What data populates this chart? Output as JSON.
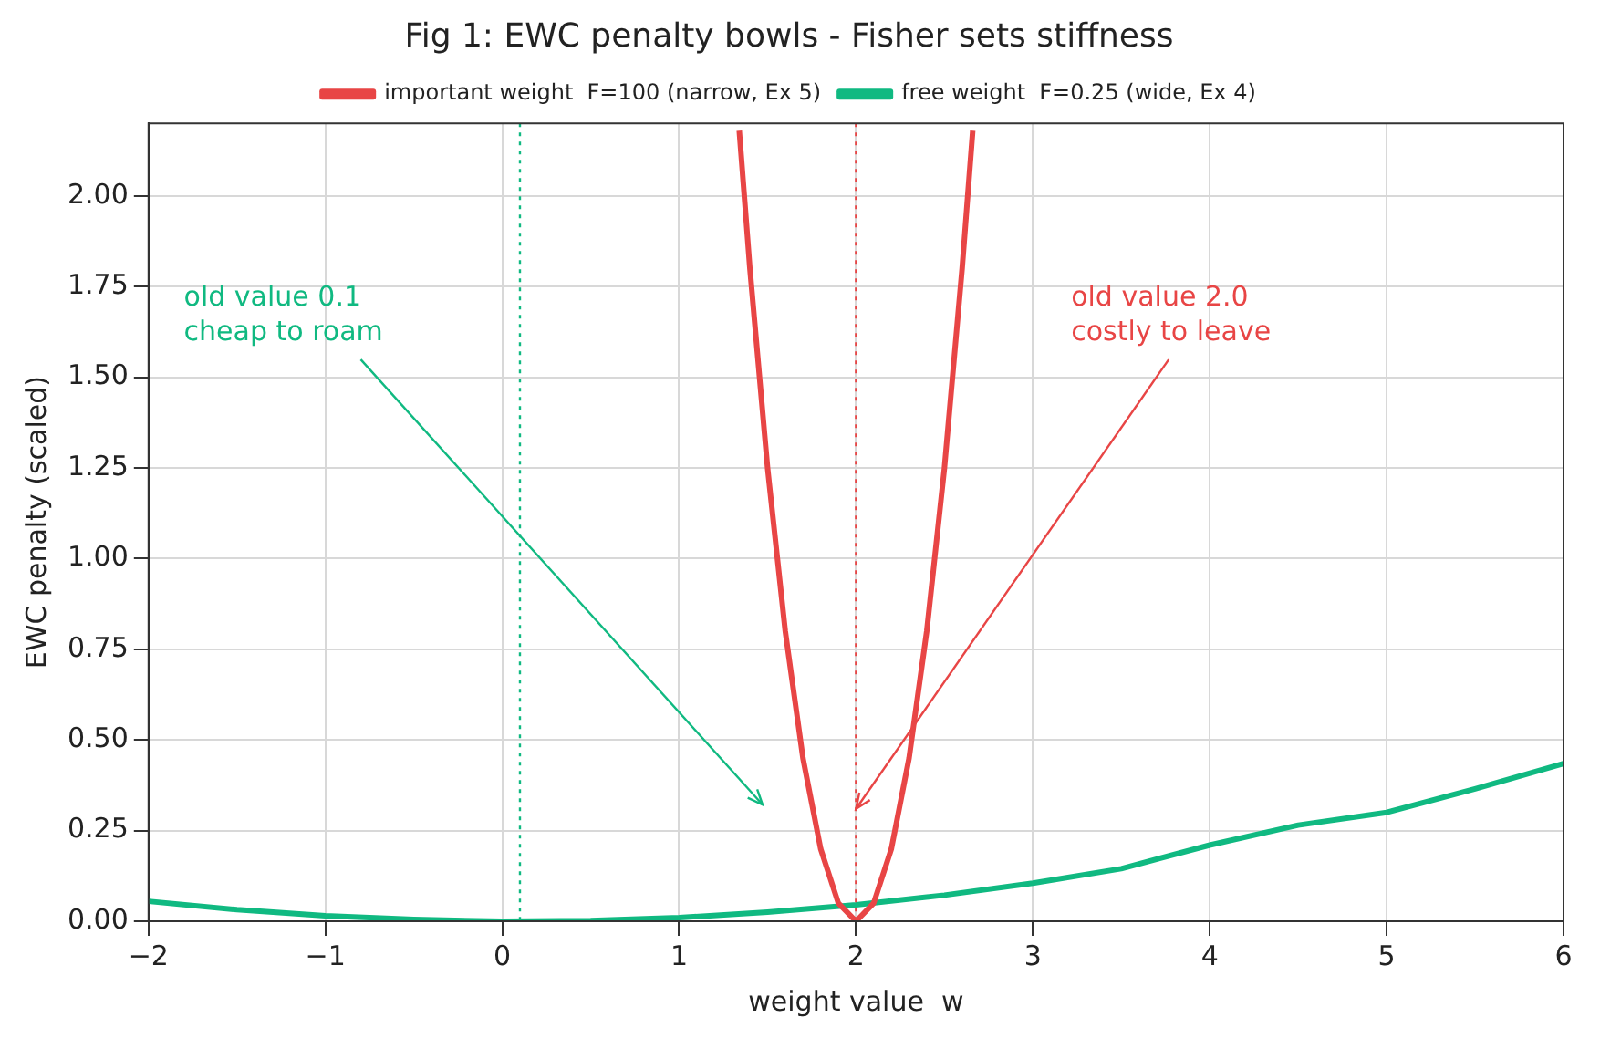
{
  "chart_data": {
    "type": "line",
    "title": "Fig 1: EWC penalty bowls - Fisher sets stiffness",
    "xlabel": "weight value  w",
    "ylabel": "EWC penalty (scaled)",
    "series": [
      {
        "name": "important weight  F=100 (narrow, Ex 5)",
        "color": "#e84545",
        "x": [
          1.34,
          1.4,
          1.5,
          1.6,
          1.7,
          1.8,
          1.9,
          2.0,
          2.1,
          2.2,
          2.3,
          2.4,
          2.5,
          2.6,
          2.66
        ],
        "values": [
          2.18,
          1.8,
          1.25,
          0.8,
          0.45,
          0.2,
          0.05,
          0,
          0.05,
          0.2,
          0.45,
          0.8,
          1.25,
          1.8,
          2.18
        ]
      },
      {
        "name": "free weight  F=0.25 (wide, Ex 4)",
        "color": "#10b981",
        "x": [
          -2,
          -1.5,
          -1,
          -0.5,
          0,
          0.5,
          1,
          1.5,
          2,
          2.5,
          3,
          3.5,
          4,
          4.5,
          5,
          5.5,
          6
        ],
        "values": [
          0.055,
          0.032,
          0.015,
          0.005,
          0,
          0.002,
          0.01,
          0.025,
          0.045,
          0.072,
          0.105,
          0.145,
          0.21,
          0.265,
          0.3,
          0.365,
          0.435
        ]
      }
    ],
    "xlim": [
      -2,
      6
    ],
    "xticks": [
      {
        "value": -2,
        "label": "−2"
      },
      {
        "value": -1,
        "label": "−1"
      },
      0,
      1,
      2,
      3,
      4,
      5,
      6
    ],
    "ylim": [
      0,
      2.2
    ],
    "yticks": [
      {
        "value": 0,
        "label": "0.00"
      },
      {
        "value": 0.25,
        "label": "0.25"
      },
      {
        "value": 0.5,
        "label": "0.50"
      },
      {
        "value": 0.75,
        "label": "0.75"
      },
      {
        "value": 1,
        "label": "1.00"
      },
      {
        "value": 1.25,
        "label": "1.25"
      },
      {
        "value": 1.5,
        "label": "1.50"
      },
      {
        "value": 1.75,
        "label": "1.75"
      },
      {
        "value": 2,
        "label": "2.00"
      }
    ],
    "ref_lines": [
      {
        "axis": "x",
        "value": 0.1,
        "color": "#10b981",
        "line_style": "dotted"
      },
      {
        "axis": "x",
        "value": 2,
        "color": "#e84545",
        "line_style": "dotted"
      }
    ],
    "annotations": [
      "old value 0.1\ncheap to roam",
      {
        "text": "old value 2.0\ncostly to leave",
        "x": 2,
        "y": 0.31
      }
    ],
    "grid": true,
    "legend": "top",
    "marker": "none",
    "line_style": "solid"
  }
}
